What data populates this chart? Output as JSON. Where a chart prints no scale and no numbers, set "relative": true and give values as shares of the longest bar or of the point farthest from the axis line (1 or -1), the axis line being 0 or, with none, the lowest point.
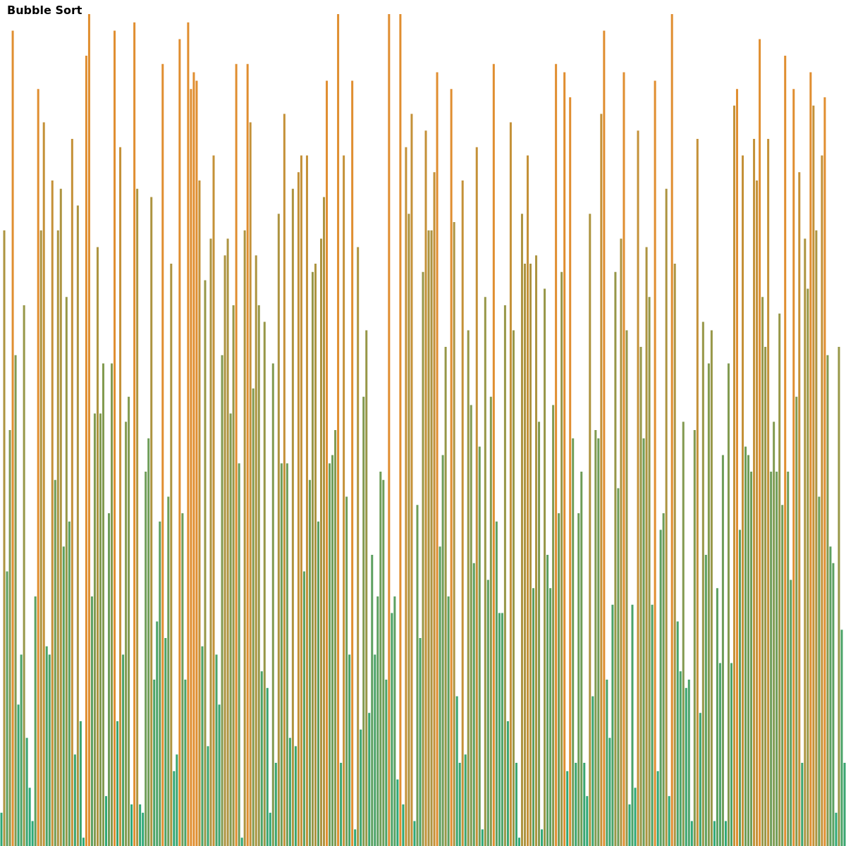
{
  "chart_data": {
    "type": "bar",
    "title": "Bubble Sort",
    "relative": true,
    "categories": [
      null,
      null,
      null,
      null,
      null,
      null,
      null,
      null,
      null,
      null,
      null,
      null,
      null,
      null,
      null,
      null,
      null,
      null,
      null,
      null,
      null,
      null,
      null,
      null,
      null,
      null,
      null,
      null,
      null,
      null,
      null,
      null,
      null,
      null,
      null,
      null,
      null,
      null,
      null,
      null,
      null,
      null,
      null,
      null,
      null,
      null,
      null,
      null,
      null,
      null,
      null,
      null,
      null,
      null,
      null,
      null,
      null,
      null,
      null,
      null,
      null,
      null,
      null,
      null,
      null,
      null,
      null,
      null,
      null,
      null,
      null,
      null,
      null,
      null,
      null,
      null,
      null,
      null,
      null,
      null,
      null,
      null,
      null,
      null,
      null,
      null,
      null,
      null,
      null,
      null,
      null,
      null,
      null,
      null,
      null,
      null,
      null,
      null,
      null,
      null,
      null,
      null,
      null,
      null,
      null,
      null,
      null,
      null,
      null,
      null,
      null,
      null,
      null,
      null,
      null,
      null,
      null,
      null,
      null,
      null,
      null,
      null,
      null,
      null,
      null,
      null,
      null,
      null,
      null,
      null,
      null,
      null,
      null,
      null,
      null,
      null,
      null,
      null,
      null,
      null,
      null,
      null,
      null,
      null,
      null,
      null,
      null,
      null,
      null,
      null,
      null,
      null,
      null,
      null,
      null,
      null,
      null,
      null,
      null,
      null,
      null,
      null,
      null,
      null,
      null,
      null,
      null,
      null,
      null,
      null,
      null,
      null,
      null,
      null,
      null,
      null,
      null,
      null,
      null,
      null,
      null,
      null,
      null,
      null,
      null,
      null,
      null,
      null,
      null,
      null,
      null,
      null,
      null,
      null,
      null,
      null,
      null,
      null,
      null,
      null,
      null,
      null,
      null,
      null,
      null,
      null,
      null,
      null,
      null,
      null,
      null,
      null,
      null,
      null,
      null,
      null,
      null,
      null,
      null,
      null,
      null,
      null,
      null,
      null,
      null,
      null,
      null,
      null,
      null,
      null,
      null,
      null,
      null,
      null,
      null,
      null,
      null,
      null,
      null,
      null,
      null,
      null,
      null,
      null,
      null,
      null,
      null,
      null,
      null,
      null,
      null,
      null,
      null,
      null,
      null,
      null,
      null,
      null,
      null,
      null,
      null,
      null,
      null,
      null,
      null,
      null,
      null,
      null,
      null,
      null,
      null,
      null,
      null,
      null,
      null,
      null,
      null,
      null,
      null,
      null,
      null,
      null,
      null,
      null,
      null,
      null,
      null,
      null,
      null,
      null,
      null,
      null,
      null,
      null,
      null,
      null,
      null,
      null,
      null
    ],
    "values": [
      0.04,
      0.74,
      0.33,
      0.5,
      0.98,
      0.59,
      0.17,
      0.23,
      0.65,
      0.13,
      0.07,
      0.03,
      0.3,
      0.91,
      0.74,
      0.87,
      0.24,
      0.23,
      0.8,
      0.44,
      0.74,
      0.79,
      0.36,
      0.66,
      0.39,
      0.85,
      0.11,
      0.77,
      0.15,
      0.01,
      0.95,
      1,
      0.3,
      0.52,
      0.72,
      0.52,
      0.58,
      0.06,
      0.4,
      0.58,
      0.98,
      0.15,
      0.84,
      0.23,
      0.51,
      0.54,
      0.05,
      0.99,
      0.79,
      0.05,
      0.04,
      0.45,
      0.49,
      0.78,
      0.2,
      0.27,
      0.39,
      0.94,
      0.25,
      0.42,
      0.7,
      0.09,
      0.11,
      0.97,
      0.4,
      0.2,
      0.99,
      0.91,
      0.93,
      0.92,
      0.8,
      0.24,
      0.68,
      0.12,
      0.73,
      0.83,
      0.23,
      0.17,
      0.59,
      0.71,
      0.73,
      0.52,
      0.65,
      0.94,
      0.46,
      0.01,
      0.74,
      0.94,
      0.87,
      0.55,
      0.71,
      0.65,
      0.21,
      0.63,
      0.19,
      0.04,
      0.58,
      0.1,
      0.76,
      0.46,
      0.88,
      0.46,
      0.13,
      0.79,
      0.12,
      0.81,
      0.83,
      0.33,
      0.83,
      0.44,
      0.69,
      0.7,
      0.39,
      0.73,
      0.78,
      0.92,
      0.46,
      0.47,
      0.5,
      1,
      0.1,
      0.83,
      0.42,
      0.23,
      0.92,
      0.02,
      0.72,
      0.14,
      0.54,
      0.62,
      0.16,
      0.35,
      0.23,
      0.3,
      0.45,
      0.44,
      0.2,
      1,
      0.28,
      0.3,
      0.08,
      1,
      0.05,
      0.84,
      0.76,
      0.88,
      0.03,
      0.41,
      0.25,
      0.69,
      0.86,
      0.74,
      0.74,
      0.81,
      0.93,
      0.36,
      0.47,
      0.6,
      0.3,
      0.91,
      0.75,
      0.18,
      0.1,
      0.8,
      0.11,
      0.62,
      0.53,
      0.34,
      0.84,
      0.48,
      0.02,
      0.66,
      0.32,
      0.54,
      0.94,
      0.39,
      0.28,
      0.28,
      0.65,
      0.15,
      0.87,
      0.62,
      0.1,
      0.01,
      0.76,
      0.7,
      0.83,
      0.7,
      0.31,
      0.71,
      0.51,
      0.02,
      0.67,
      0.35,
      0.31,
      0.53,
      0.94,
      0.4,
      0.69,
      0.93,
      0.09,
      0.9,
      0.49,
      0.1,
      0.4,
      0.45,
      0.1,
      0.06,
      0.76,
      0.18,
      0.5,
      0.49,
      0.88,
      0.98,
      0.2,
      0.13,
      0.29,
      0.69,
      0.43,
      0.73,
      0.93,
      0.62,
      0.05,
      0.29,
      0.07,
      0.86,
      0.6,
      0.49,
      0.72,
      0.66,
      0.29,
      0.92,
      0.09,
      0.38,
      0.4,
      0.79,
      0.06,
      1,
      0.7,
      0.27,
      0.21,
      0.51,
      0.19,
      0.2,
      0.03,
      0.5,
      0.85,
      0.16,
      0.63,
      0.35,
      0.58,
      0.62,
      0.03,
      0.31,
      0.22,
      0.47,
      0.03,
      0.58,
      0.22,
      0.89,
      0.91,
      0.38,
      0.83,
      0.48,
      0.47,
      0.45,
      0.85,
      0.8,
      0.97,
      0.66,
      0.6,
      0.85,
      0.45,
      0.51,
      0.45,
      0.64,
      0.41,
      0.95,
      0.45,
      0.32,
      0.91,
      0.54,
      0.81,
      0.1,
      0.73,
      0.67,
      0.93,
      0.89,
      0.74,
      0.42,
      0.83,
      0.9,
      0.59,
      0.36,
      0.34,
      0.04,
      0.6,
      0.26,
      0.1
    ],
    "colors": [
      "#2ea877",
      "#ad9440",
      "#5ca060",
      "#829a50",
      "#e08e30",
      "#829a50",
      "#3aa570",
      "#4aa368",
      "#979748",
      "#3aa570",
      "#2ea877",
      "#2ea877",
      "#5ca060",
      "#e08e30",
      "#ad9440",
      "#c49138",
      "#4aa368",
      "#4aa368",
      "#c49138",
      "#6e9d58",
      "#ad9440",
      "#ad9440",
      "#5ca060",
      "#979748",
      "#5ca060",
      "#c49138",
      "#3aa570",
      "#ad9440",
      "#3aa570",
      "#2ea877",
      "#e08e30",
      "#e08e30",
      "#5ca060",
      "#829a50",
      "#ad9440",
      "#829a50",
      "#829a50",
      "#2ea877",
      "#6e9d58",
      "#829a50",
      "#e08e30",
      "#3aa570",
      "#c49138",
      "#4aa368",
      "#829a50",
      "#829a50",
      "#2ea877",
      "#e08e30",
      "#ad9440",
      "#2ea877",
      "#2ea877",
      "#6e9d58",
      "#6e9d58",
      "#ad9440",
      "#4aa368",
      "#4aa368",
      "#5ca060",
      "#e08e30",
      "#4aa368",
      "#6e9d58",
      "#ad9440",
      "#2ea877",
      "#3aa570",
      "#e08e30",
      "#6e9d58",
      "#4aa368",
      "#e08e30",
      "#e08e30",
      "#e08e30",
      "#e08e30",
      "#c49138",
      "#4aa368",
      "#979748",
      "#3aa570",
      "#ad9440",
      "#c49138",
      "#4aa368",
      "#3aa570",
      "#829a50",
      "#ad9440",
      "#ad9440",
      "#829a50",
      "#979748",
      "#e08e30",
      "#6e9d58",
      "#2ea877",
      "#ad9440",
      "#e08e30",
      "#c49138",
      "#829a50",
      "#ad9440",
      "#979748",
      "#4aa368",
      "#979748",
      "#3aa570",
      "#2ea877",
      "#829a50",
      "#3aa570",
      "#ad9440",
      "#6e9d58",
      "#c49138",
      "#6e9d58",
      "#3aa570",
      "#ad9440",
      "#3aa570",
      "#c49138",
      "#c49138",
      "#5ca060",
      "#c49138",
      "#6e9d58",
      "#979748",
      "#ad9440",
      "#5ca060",
      "#ad9440",
      "#ad9440",
      "#e08e30",
      "#6e9d58",
      "#6e9d58",
      "#829a50",
      "#e08e30",
      "#3aa570",
      "#c49138",
      "#6e9d58",
      "#4aa368",
      "#e08e30",
      "#2ea877",
      "#ad9440",
      "#3aa570",
      "#829a50",
      "#979748",
      "#3aa570",
      "#5ca060",
      "#4aa368",
      "#5ca060",
      "#6e9d58",
      "#6e9d58",
      "#4aa368",
      "#e08e30",
      "#4aa368",
      "#5ca060",
      "#2ea877",
      "#e08e30",
      "#2ea877",
      "#c49138",
      "#ad9440",
      "#c49138",
      "#2ea877",
      "#6e9d58",
      "#4aa368",
      "#979748",
      "#c49138",
      "#ad9440",
      "#ad9440",
      "#c49138",
      "#e08e30",
      "#5ca060",
      "#6e9d58",
      "#979748",
      "#5ca060",
      "#e08e30",
      "#ad9440",
      "#3aa570",
      "#3aa570",
      "#c49138",
      "#3aa570",
      "#979748",
      "#829a50",
      "#5ca060",
      "#c49138",
      "#6e9d58",
      "#2ea877",
      "#979748",
      "#5ca060",
      "#829a50",
      "#e08e30",
      "#5ca060",
      "#4aa368",
      "#4aa368",
      "#979748",
      "#3aa570",
      "#c49138",
      "#979748",
      "#3aa570",
      "#2ea877",
      "#ad9440",
      "#ad9440",
      "#c49138",
      "#ad9440",
      "#5ca060",
      "#ad9440",
      "#829a50",
      "#2ea877",
      "#979748",
      "#5ca060",
      "#5ca060",
      "#829a50",
      "#e08e30",
      "#6e9d58",
      "#979748",
      "#e08e30",
      "#2ea877",
      "#e08e30",
      "#6e9d58",
      "#3aa570",
      "#6e9d58",
      "#6e9d58",
      "#3aa570",
      "#2ea877",
      "#ad9440",
      "#3aa570",
      "#829a50",
      "#6e9d58",
      "#c49138",
      "#e08e30",
      "#4aa368",
      "#3aa570",
      "#4aa368",
      "#979748",
      "#6e9d58",
      "#ad9440",
      "#e08e30",
      "#979748",
      "#2ea877",
      "#4aa368",
      "#2ea877",
      "#c49138",
      "#979748",
      "#6e9d58",
      "#ad9440",
      "#979748",
      "#4aa368",
      "#e08e30",
      "#2ea877",
      "#5ca060",
      "#6e9d58",
      "#ad9440",
      "#2ea877",
      "#e08e30",
      "#ad9440",
      "#4aa368",
      "#4aa368",
      "#829a50",
      "#3aa570",
      "#4aa368",
      "#2ea877",
      "#829a50",
      "#c49138",
      "#3aa570",
      "#979748",
      "#5ca060",
      "#829a50",
      "#979748",
      "#2ea877",
      "#5ca060",
      "#4aa368",
      "#6e9d58",
      "#2ea877",
      "#829a50",
      "#4aa368",
      "#c49138",
      "#e08e30",
      "#5ca060",
      "#c49138",
      "#6e9d58",
      "#6e9d58",
      "#6e9d58",
      "#c49138",
      "#c49138",
      "#e08e30",
      "#979748",
      "#979748",
      "#c49138",
      "#6e9d58",
      "#829a50",
      "#6e9d58",
      "#979748",
      "#6e9d58",
      "#e08e30",
      "#6e9d58",
      "#5ca060",
      "#e08e30",
      "#829a50",
      "#c49138",
      "#3aa570",
      "#ad9440",
      "#979748",
      "#e08e30",
      "#c49138",
      "#ad9440",
      "#6e9d58",
      "#c49138",
      "#e08e30",
      "#829a50",
      "#5ca060",
      "#5ca060",
      "#2ea877",
      "#979748",
      "#4aa368",
      "#3aa570"
    ]
  }
}
